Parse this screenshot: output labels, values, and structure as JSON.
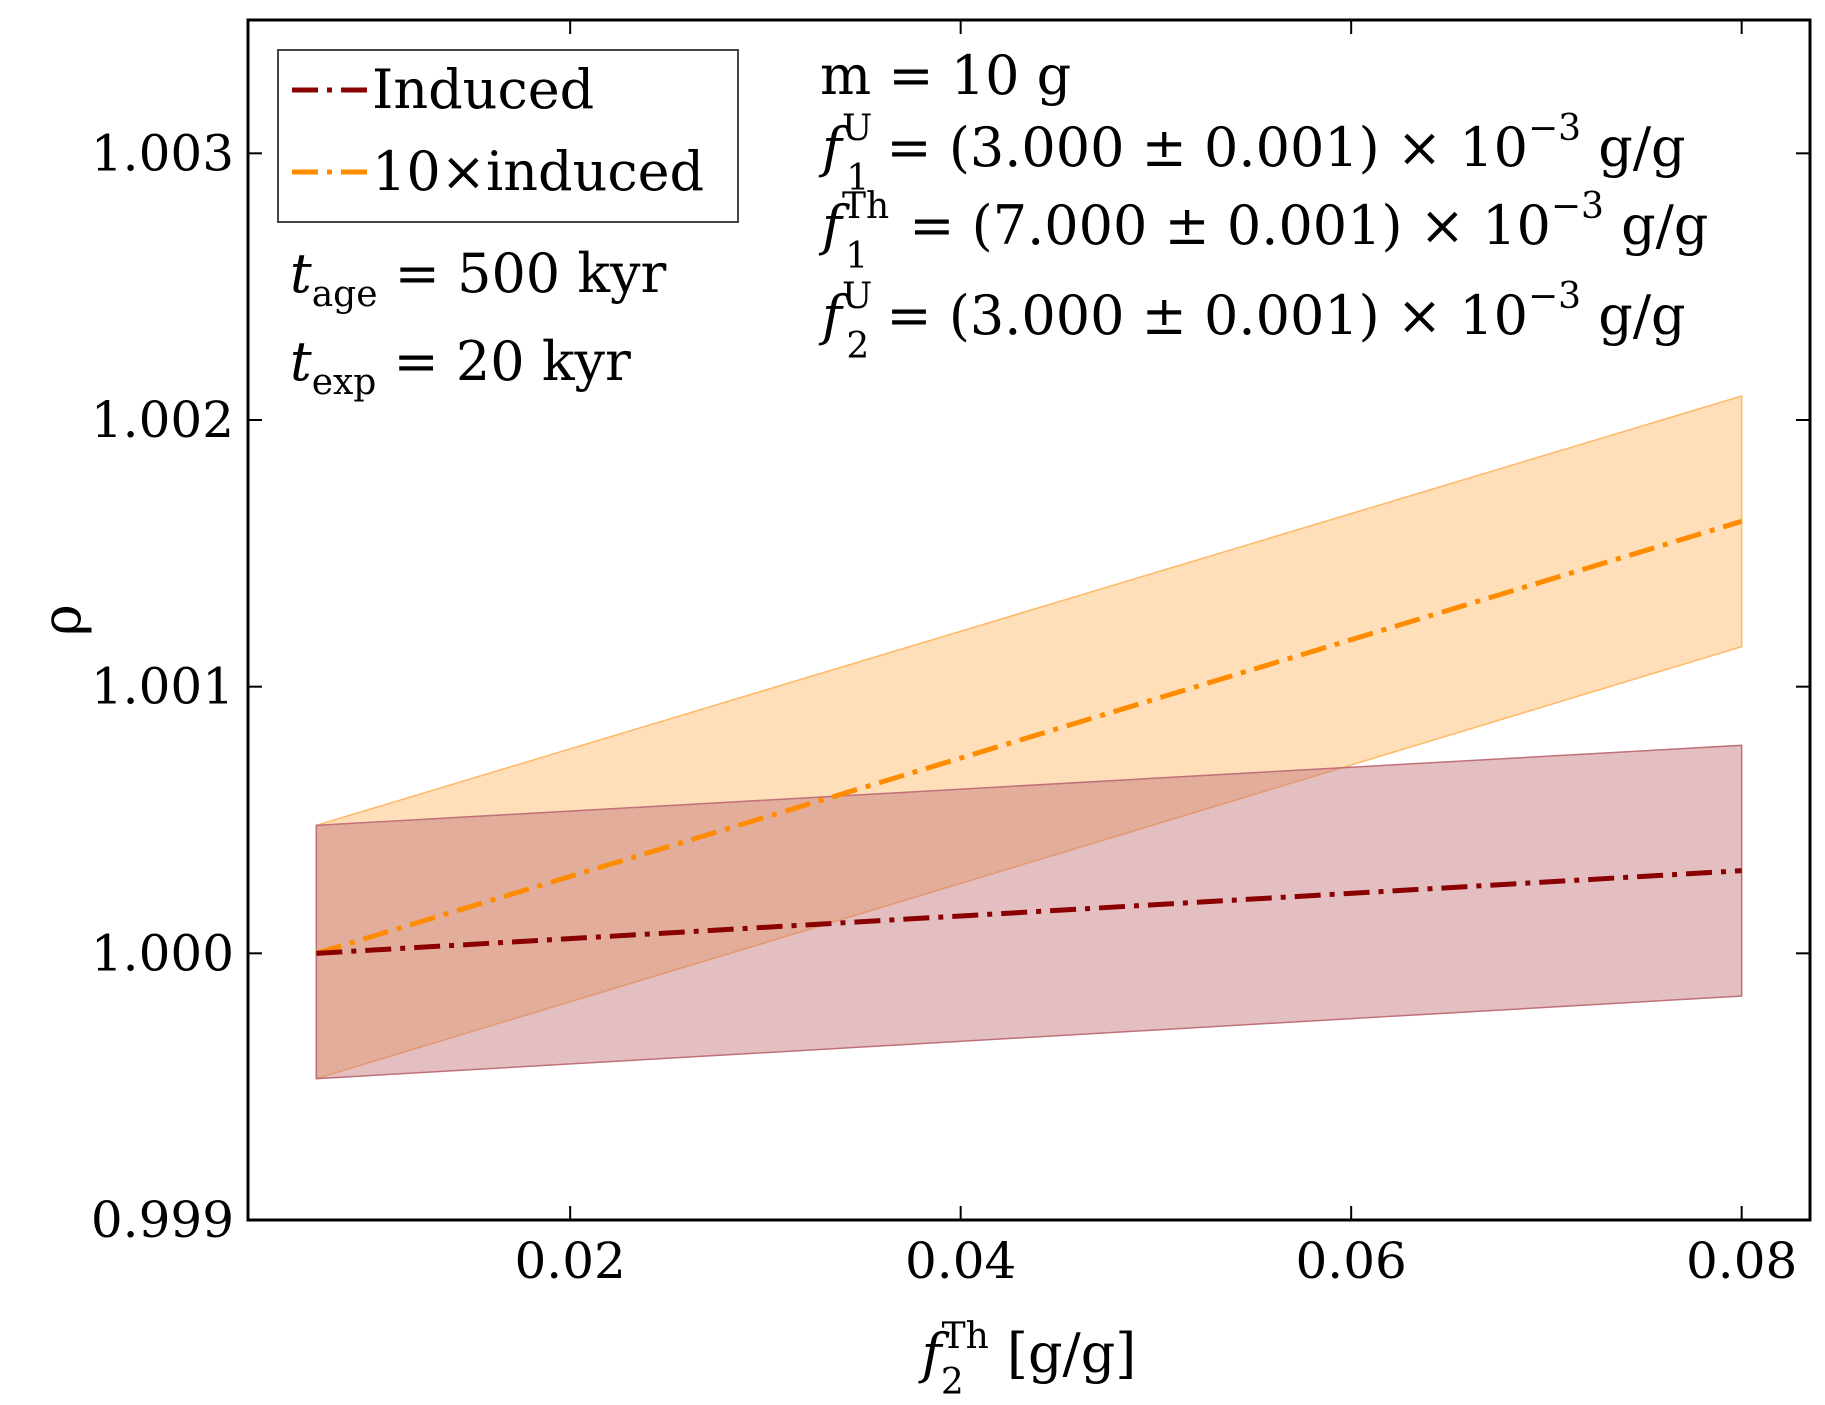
{
  "chart_data": {
    "type": "line",
    "xlabel": {
      "main": "f",
      "sub": "2",
      "sup": "Th",
      "unit": " [g/g]"
    },
    "ylabel": "ρ",
    "xlim": [
      0.0035,
      0.0835
    ],
    "ylim": [
      0.999,
      1.0035
    ],
    "xticks": [
      0.02,
      0.04,
      0.06,
      0.08
    ],
    "xtick_labels": [
      "0.02",
      "0.04",
      "0.06",
      "0.08"
    ],
    "yticks": [
      0.999,
      1.0,
      1.001,
      1.002,
      1.003
    ],
    "ytick_labels": [
      "0.999",
      "1.000",
      "1.001",
      "1.002",
      "1.003"
    ],
    "grid": false,
    "legend_position": "top-left",
    "series": [
      {
        "name": "Induced",
        "color": "#8b0000",
        "band_color": "#c07078",
        "line_style": "dash-dot",
        "x": [
          0.007,
          0.08
        ],
        "y": [
          1.0,
          1.00031
        ],
        "lower": [
          0.99953,
          0.99984
        ],
        "upper": [
          1.00048,
          1.00078
        ]
      },
      {
        "name": "10×induced",
        "color": "#ff8c00",
        "band_color": "#ffb866",
        "line_style": "dash-dot",
        "x": [
          0.007,
          0.08
        ],
        "y": [
          1.0,
          1.00162
        ],
        "lower": [
          0.99953,
          1.00115
        ],
        "upper": [
          1.00048,
          1.00209
        ]
      }
    ],
    "annotations": {
      "t_age": {
        "sym": "t",
        "sub": "age",
        "rest": " = 500 kyr"
      },
      "t_exp": {
        "sym": "t",
        "sub": "exp",
        "rest": " = 20 kyr"
      },
      "mass": "m = 10 g",
      "f1U": {
        "sym": "f",
        "sub": "1",
        "sup": "U",
        "rest": " = (3.000 ± 0.001) × 10",
        "exp": "−3",
        "unit": " g/g"
      },
      "f1Th": {
        "sym": "f",
        "sub": "1",
        "sup": "Th",
        "rest": " = (7.000 ± 0.001) × 10",
        "exp": "−3",
        "unit": " g/g"
      },
      "f2U": {
        "sym": "f",
        "sub": "2",
        "sup": "U",
        "rest": " = (3.000 ± 0.001) × 10",
        "exp": "−3",
        "unit": " g/g"
      }
    }
  }
}
